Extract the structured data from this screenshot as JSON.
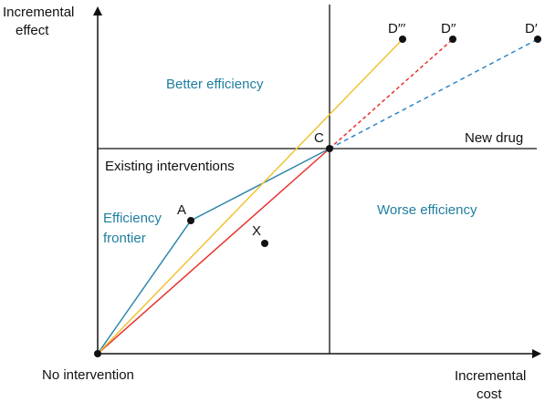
{
  "axes": {
    "y_label_line1": "Incremental",
    "y_label_line2": "effect",
    "x_label_line1": "Incremental",
    "x_label_line2": "cost"
  },
  "regions": {
    "better": "Better efficiency",
    "worse": "Worse efficiency"
  },
  "lines": {
    "new_drug": "New drug",
    "existing": "Existing interventions"
  },
  "frontier": {
    "line1": "Efficiency",
    "line2": "frontier"
  },
  "origin_label": "No intervention",
  "points": {
    "a": "A",
    "c": "C",
    "x": "X",
    "d1": "D′",
    "d2": "D′′",
    "d3": "D′′′"
  },
  "colors": {
    "axis": "#111111",
    "frontier": "#2e86a8",
    "red": "#e8322c",
    "yellow": "#f2c233",
    "blue_dashed": "#2e86c8",
    "teal_text": "#1f7ea1"
  }
}
